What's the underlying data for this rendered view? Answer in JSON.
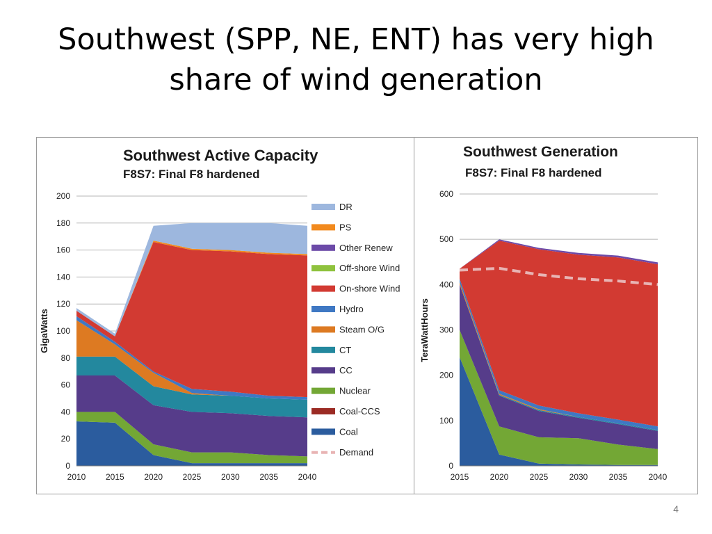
{
  "slide": {
    "title_line1": "Southwest (SPP, NE, ENT) has very high",
    "title_line2": "share of wind generation",
    "page_number": "4"
  },
  "chart_data": [
    {
      "type": "area",
      "stacked": true,
      "title": "Southwest Active Capacity",
      "subtitle": "F8S7: Final F8 hardened",
      "ylabel": "GigaWatts",
      "xlabel": "",
      "ylim": [
        0,
        200
      ],
      "yticks": [
        0,
        20,
        40,
        60,
        80,
        100,
        120,
        140,
        160,
        180,
        200
      ],
      "x": [
        2010,
        2015,
        2020,
        2025,
        2030,
        2035,
        2040
      ],
      "grid": true,
      "legend": "right",
      "series": [
        {
          "name": "Coal",
          "color": "#2b5c9e",
          "values": [
            33,
            32,
            8,
            2,
            2,
            2,
            2
          ]
        },
        {
          "name": "Coal-CCS",
          "color": "#9b2b24",
          "values": [
            0,
            0,
            0,
            0,
            0,
            0,
            0
          ]
        },
        {
          "name": "Nuclear",
          "color": "#73a735",
          "values": [
            7,
            8,
            8,
            8,
            8,
            6,
            5
          ]
        },
        {
          "name": "CC",
          "color": "#563c8a",
          "values": [
            27,
            27,
            29,
            30,
            29,
            29,
            29
          ]
        },
        {
          "name": "CT",
          "color": "#23889e",
          "values": [
            14,
            14,
            14,
            13,
            13,
            13,
            13
          ]
        },
        {
          "name": "Steam O/G",
          "color": "#dd7a22",
          "values": [
            27,
            9,
            10,
            1,
            0,
            0,
            0
          ]
        },
        {
          "name": "Hydro",
          "color": "#3f78c3",
          "values": [
            3,
            2,
            1,
            3,
            3,
            2,
            2
          ]
        },
        {
          "name": "On-shore Wind",
          "color": "#d23a32",
          "values": [
            4,
            4,
            96,
            103,
            104,
            105,
            105
          ]
        },
        {
          "name": "Off-shore Wind",
          "color": "#8fc23e",
          "values": [
            0,
            0,
            0,
            0,
            0,
            0,
            0
          ]
        },
        {
          "name": "Other Renew",
          "color": "#6c4aa8",
          "values": [
            0,
            0,
            0,
            0,
            0,
            0,
            0
          ]
        },
        {
          "name": "PS",
          "color": "#f28a1e",
          "values": [
            0,
            0,
            1,
            1,
            1,
            1,
            1
          ]
        },
        {
          "name": "DR",
          "color": "#9db7de",
          "values": [
            2,
            2,
            11,
            19,
            20,
            22,
            21
          ]
        }
      ],
      "demand_legend_label": "Demand"
    },
    {
      "type": "area",
      "stacked": true,
      "title": "Southwest Generation",
      "subtitle": "F8S7: Final F8 hardened",
      "ylabel": "TeraWattHours",
      "xlabel": "",
      "ylim": [
        0,
        600
      ],
      "yticks": [
        0,
        100,
        200,
        300,
        400,
        500,
        600
      ],
      "x": [
        2015,
        2020,
        2025,
        2030,
        2035,
        2040
      ],
      "grid": true,
      "series": [
        {
          "name": "Coal",
          "color": "#2b5c9e",
          "values": [
            240,
            25,
            5,
            3,
            2,
            2
          ]
        },
        {
          "name": "Nuclear",
          "color": "#73a735",
          "values": [
            60,
            62,
            58,
            58,
            45,
            35
          ]
        },
        {
          "name": "CC",
          "color": "#563c8a",
          "values": [
            100,
            68,
            58,
            45,
            45,
            40
          ]
        },
        {
          "name": "CT",
          "color": "#23889e",
          "values": [
            0,
            2,
            2,
            2,
            2,
            2
          ]
        },
        {
          "name": "Steam O/G",
          "color": "#dd7a22",
          "values": [
            5,
            2,
            2,
            0,
            0,
            0
          ]
        },
        {
          "name": "Hydro",
          "color": "#3f78c3",
          "values": [
            8,
            8,
            8,
            8,
            8,
            8
          ]
        },
        {
          "name": "On-shore Wind",
          "color": "#d23a32",
          "values": [
            22,
            330,
            345,
            350,
            358,
            358
          ]
        },
        {
          "name": "Other Renew",
          "color": "#6c4aa8",
          "values": [
            0,
            3,
            3,
            4,
            4,
            4
          ]
        }
      ],
      "demand": {
        "name": "Demand",
        "color": "#e8b4b4",
        "values": [
          432,
          436,
          422,
          413,
          408,
          400
        ]
      }
    }
  ]
}
